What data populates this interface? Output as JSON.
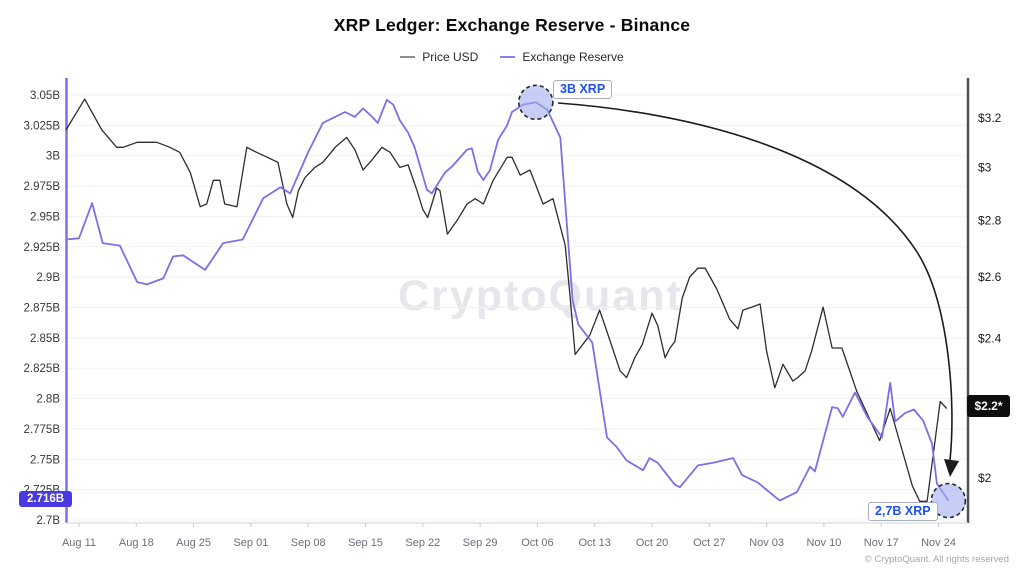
{
  "title": "XRP Ledger: Exchange Reserve - Binance",
  "legend": {
    "items": [
      {
        "label": "Price USD",
        "color": "#8e8e93"
      },
      {
        "label": "Exchange Reserve",
        "color": "#8a80ec"
      }
    ]
  },
  "watermark": "CryptoQuant",
  "footer": "© CryptoQuant. All rights reserved",
  "annotations": {
    "top_callout": "3B XRP",
    "bottom_callout": "2,7B XRP",
    "reserve_badge": "2.716B",
    "price_badge": "$2.2*"
  },
  "chart_data": {
    "type": "line",
    "x_unit": "days since Aug 11",
    "x_ticks": [
      {
        "d": 0,
        "label": "Aug 11"
      },
      {
        "d": 7,
        "label": "Aug 18"
      },
      {
        "d": 14,
        "label": "Aug 25"
      },
      {
        "d": 21,
        "label": "Sep 01"
      },
      {
        "d": 28,
        "label": "Sep 08"
      },
      {
        "d": 35,
        "label": "Sep 15"
      },
      {
        "d": 42,
        "label": "Sep 22"
      },
      {
        "d": 49,
        "label": "Sep 29"
      },
      {
        "d": 56,
        "label": "Oct 06"
      },
      {
        "d": 63,
        "label": "Oct 13"
      },
      {
        "d": 70,
        "label": "Oct 20"
      },
      {
        "d": 77,
        "label": "Oct 27"
      },
      {
        "d": 84,
        "label": "Nov 03"
      },
      {
        "d": 91,
        "label": "Nov 10"
      },
      {
        "d": 98,
        "label": "Nov 17"
      },
      {
        "d": 105,
        "label": "Nov 24"
      }
    ],
    "y_left": {
      "unit": "XRP (billions)",
      "scale": "linear",
      "range": [
        2.7,
        3.05
      ],
      "ticks": [
        {
          "v": 3.05,
          "label": "3.05B"
        },
        {
          "v": 3.025,
          "label": "3.025B"
        },
        {
          "v": 3.0,
          "label": "3B"
        },
        {
          "v": 2.975,
          "label": "2.975B"
        },
        {
          "v": 2.95,
          "label": "2.95B"
        },
        {
          "v": 2.925,
          "label": "2.925B"
        },
        {
          "v": 2.9,
          "label": "2.9B"
        },
        {
          "v": 2.875,
          "label": "2.875B"
        },
        {
          "v": 2.85,
          "label": "2.85B"
        },
        {
          "v": 2.825,
          "label": "2.825B"
        },
        {
          "v": 2.8,
          "label": "2.8B"
        },
        {
          "v": 2.775,
          "label": "2.775B"
        },
        {
          "v": 2.75,
          "label": "2.75B"
        },
        {
          "v": 2.725,
          "label": "2.725B"
        },
        {
          "v": 2.7,
          "label": "2.7B"
        }
      ]
    },
    "y_right": {
      "unit": "USD",
      "scale": "log",
      "range": [
        2.0,
        3.2
      ],
      "ticks": [
        {
          "v": 3.2,
          "label": "$3.2"
        },
        {
          "v": 3.0,
          "label": "$3"
        },
        {
          "v": 2.8,
          "label": "$2.8"
        },
        {
          "v": 2.6,
          "label": "$2.6"
        },
        {
          "v": 2.4,
          "label": "$2.4"
        },
        {
          "v": 2.0,
          "label": "$2"
        }
      ]
    },
    "series": [
      {
        "name": "Price USD",
        "axis": "right",
        "color": "#2d2d30",
        "points": [
          [
            -1.6,
            3.15
          ],
          [
            0.7,
            3.28
          ],
          [
            2.8,
            3.15
          ],
          [
            4.6,
            3.08
          ],
          [
            5.4,
            3.08
          ],
          [
            7.1,
            3.1
          ],
          [
            9.5,
            3.1
          ],
          [
            11.1,
            3.08
          ],
          [
            12.3,
            3.06
          ],
          [
            13.6,
            2.98
          ],
          [
            14.8,
            2.85
          ],
          [
            15.6,
            2.86
          ],
          [
            16.4,
            2.95
          ],
          [
            17.2,
            2.95
          ],
          [
            17.8,
            2.86
          ],
          [
            19.3,
            2.85
          ],
          [
            20.5,
            3.08
          ],
          [
            21.7,
            3.06
          ],
          [
            23.0,
            3.04
          ],
          [
            24.3,
            3.02
          ],
          [
            25.4,
            2.86
          ],
          [
            26.1,
            2.81
          ],
          [
            26.8,
            2.91
          ],
          [
            27.6,
            2.96
          ],
          [
            28.8,
            3.0
          ],
          [
            29.8,
            3.02
          ],
          [
            31.3,
            3.08
          ],
          [
            32.7,
            3.12
          ],
          [
            33.7,
            3.07
          ],
          [
            34.7,
            2.99
          ],
          [
            35.8,
            3.03
          ],
          [
            37.0,
            3.08
          ],
          [
            38.0,
            3.06
          ],
          [
            39.2,
            3.0
          ],
          [
            40.2,
            3.01
          ],
          [
            41.3,
            2.91
          ],
          [
            42.0,
            2.84
          ],
          [
            42.6,
            2.81
          ],
          [
            43.7,
            2.92
          ],
          [
            44.1,
            2.91
          ],
          [
            45.0,
            2.75
          ],
          [
            46.2,
            2.8
          ],
          [
            47.4,
            2.86
          ],
          [
            48.4,
            2.88
          ],
          [
            49.4,
            2.86
          ],
          [
            50.6,
            2.95
          ],
          [
            52.3,
            3.04
          ],
          [
            52.9,
            3.04
          ],
          [
            53.9,
            2.97
          ],
          [
            55.1,
            2.99
          ],
          [
            56.7,
            2.86
          ],
          [
            57.9,
            2.88
          ],
          [
            59.4,
            2.71
          ],
          [
            60.0,
            2.53
          ],
          [
            60.6,
            2.35
          ],
          [
            62.4,
            2.41
          ],
          [
            63.6,
            2.49
          ],
          [
            64.9,
            2.39
          ],
          [
            66.1,
            2.3
          ],
          [
            66.9,
            2.28
          ],
          [
            67.9,
            2.34
          ],
          [
            68.8,
            2.38
          ],
          [
            70.0,
            2.48
          ],
          [
            70.7,
            2.44
          ],
          [
            71.6,
            2.34
          ],
          [
            72.2,
            2.37
          ],
          [
            72.8,
            2.39
          ],
          [
            73.7,
            2.53
          ],
          [
            74.6,
            2.6
          ],
          [
            75.6,
            2.63
          ],
          [
            76.5,
            2.63
          ],
          [
            77.1,
            2.6
          ],
          [
            77.9,
            2.56
          ],
          [
            78.7,
            2.51
          ],
          [
            79.5,
            2.46
          ],
          [
            80.5,
            2.43
          ],
          [
            81.1,
            2.49
          ],
          [
            82.2,
            2.5
          ],
          [
            83.2,
            2.51
          ],
          [
            84.0,
            2.36
          ],
          [
            85.0,
            2.25
          ],
          [
            86.0,
            2.32
          ],
          [
            87.2,
            2.27
          ],
          [
            87.8,
            2.28
          ],
          [
            88.7,
            2.3
          ],
          [
            89.5,
            2.36
          ],
          [
            90.9,
            2.5
          ],
          [
            92.0,
            2.37
          ],
          [
            93.2,
            2.37
          ],
          [
            95.0,
            2.24
          ],
          [
            97.8,
            2.1
          ],
          [
            99.1,
            2.19
          ],
          [
            101.8,
            1.98
          ],
          [
            102.7,
            1.94
          ],
          [
            103.6,
            1.94
          ],
          [
            105.2,
            2.21
          ],
          [
            106.0,
            2.19
          ]
        ]
      },
      {
        "name": "Exchange Reserve",
        "axis": "left",
        "color": "#7b70e8",
        "points": [
          [
            -1.6,
            2.931
          ],
          [
            0,
            2.932
          ],
          [
            1.6,
            2.961
          ],
          [
            2.9,
            2.928
          ],
          [
            5.0,
            2.926
          ],
          [
            7.1,
            2.896
          ],
          [
            8.3,
            2.894
          ],
          [
            10.3,
            2.899
          ],
          [
            11.5,
            2.917
          ],
          [
            12.7,
            2.918
          ],
          [
            15.4,
            2.906
          ],
          [
            17.6,
            2.928
          ],
          [
            20.0,
            2.931
          ],
          [
            22.5,
            2.965
          ],
          [
            24.6,
            2.974
          ],
          [
            25.8,
            2.969
          ],
          [
            28.0,
            3.003
          ],
          [
            29.8,
            3.027
          ],
          [
            32.5,
            3.036
          ],
          [
            33.7,
            3.032
          ],
          [
            34.7,
            3.039
          ],
          [
            35.8,
            3.032
          ],
          [
            36.5,
            3.027
          ],
          [
            37.6,
            3.046
          ],
          [
            38.4,
            3.042
          ],
          [
            39.2,
            3.029
          ],
          [
            40.2,
            3.019
          ],
          [
            41.0,
            3.007
          ],
          [
            41.9,
            2.986
          ],
          [
            42.5,
            2.972
          ],
          [
            43.1,
            2.969
          ],
          [
            44.7,
            2.986
          ],
          [
            45.7,
            2.992
          ],
          [
            47.4,
            3.005
          ],
          [
            48.0,
            3.006
          ],
          [
            48.7,
            2.987
          ],
          [
            49.4,
            2.98
          ],
          [
            50.2,
            2.988
          ],
          [
            51.2,
            3.013
          ],
          [
            52.3,
            3.025
          ],
          [
            52.9,
            3.036
          ],
          [
            54.2,
            3.042
          ],
          [
            55.8,
            3.044
          ],
          [
            57.2,
            3.038
          ],
          [
            58.1,
            3.025
          ],
          [
            58.8,
            3.015
          ],
          [
            60.3,
            2.881
          ],
          [
            61.0,
            2.861
          ],
          [
            62.7,
            2.846
          ],
          [
            64.5,
            2.768
          ],
          [
            65.7,
            2.76
          ],
          [
            66.9,
            2.749
          ],
          [
            68.9,
            2.741
          ],
          [
            69.7,
            2.751
          ],
          [
            70.7,
            2.747
          ],
          [
            72.8,
            2.729
          ],
          [
            73.4,
            2.727
          ],
          [
            75.6,
            2.745
          ],
          [
            77.4,
            2.747
          ],
          [
            79.9,
            2.751
          ],
          [
            81.0,
            2.737
          ],
          [
            82.9,
            2.731
          ],
          [
            85.6,
            2.716
          ],
          [
            87.7,
            2.723
          ],
          [
            89.3,
            2.744
          ],
          [
            89.9,
            2.74
          ],
          [
            92.0,
            2.793
          ],
          [
            92.7,
            2.792
          ],
          [
            93.3,
            2.785
          ],
          [
            94.8,
            2.805
          ],
          [
            96.3,
            2.785
          ],
          [
            98.1,
            2.768
          ],
          [
            99.1,
            2.813
          ],
          [
            99.7,
            2.781
          ],
          [
            100.9,
            2.788
          ],
          [
            102.0,
            2.791
          ],
          [
            103.1,
            2.782
          ],
          [
            104.2,
            2.763
          ],
          [
            104.8,
            2.73
          ],
          [
            106.2,
            2.716
          ]
        ]
      }
    ],
    "callouts": [
      {
        "label": "3B XRP",
        "d": 55.8,
        "value": 3.044,
        "axis": "left"
      },
      {
        "label": "2,7B XRP",
        "d": 106.2,
        "value": 2.716,
        "axis": "left"
      }
    ],
    "latest_values": {
      "reserve": "2.716B",
      "price": "$2.2*"
    }
  }
}
